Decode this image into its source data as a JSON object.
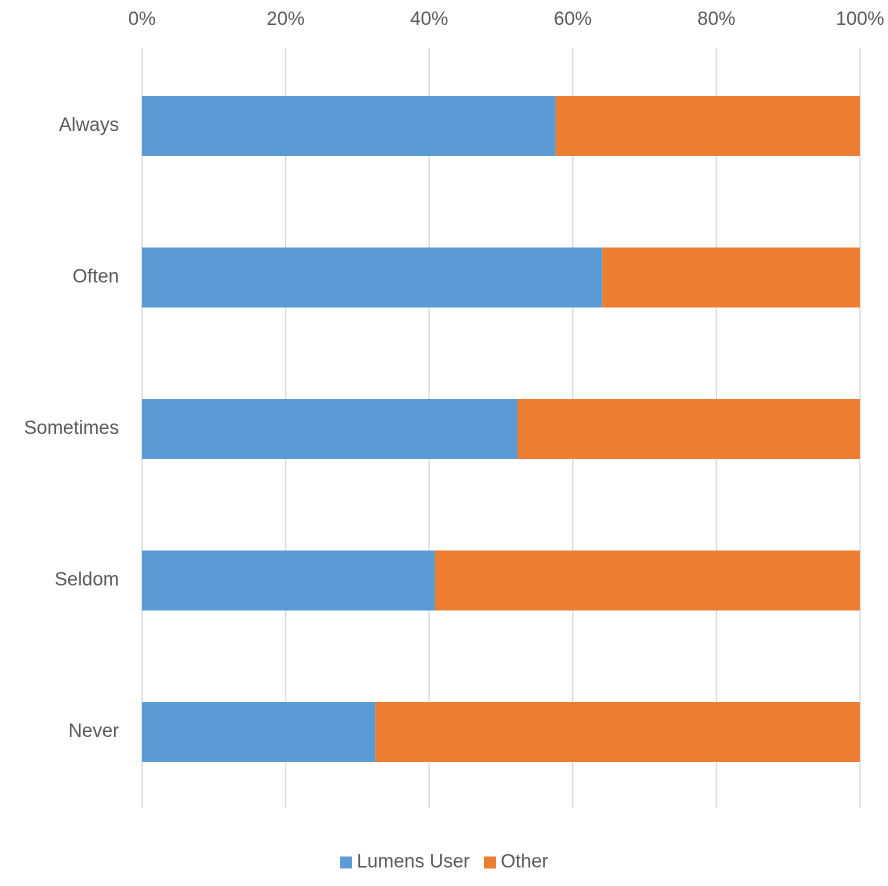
{
  "chart_data": {
    "type": "bar",
    "orientation": "horizontal",
    "stacked": "percent",
    "title": "",
    "xlabel": "",
    "ylabel": "",
    "categories": [
      "Always",
      "Often",
      "Sometimes",
      "Seldom",
      "Never"
    ],
    "x_ticks": [
      "0%",
      "20%",
      "40%",
      "60%",
      "80%",
      "100%"
    ],
    "xlim": [
      0,
      100
    ],
    "grid": true,
    "legend_position": "bottom",
    "series": [
      {
        "name": "Lumens User",
        "color": "#5B9BD5",
        "values": [
          57.6,
          64.1,
          52.3,
          40.8,
          32.5
        ]
      },
      {
        "name": "Other",
        "color": "#ED7D31",
        "values": [
          42.4,
          35.9,
          47.7,
          59.2,
          67.5
        ]
      }
    ]
  }
}
